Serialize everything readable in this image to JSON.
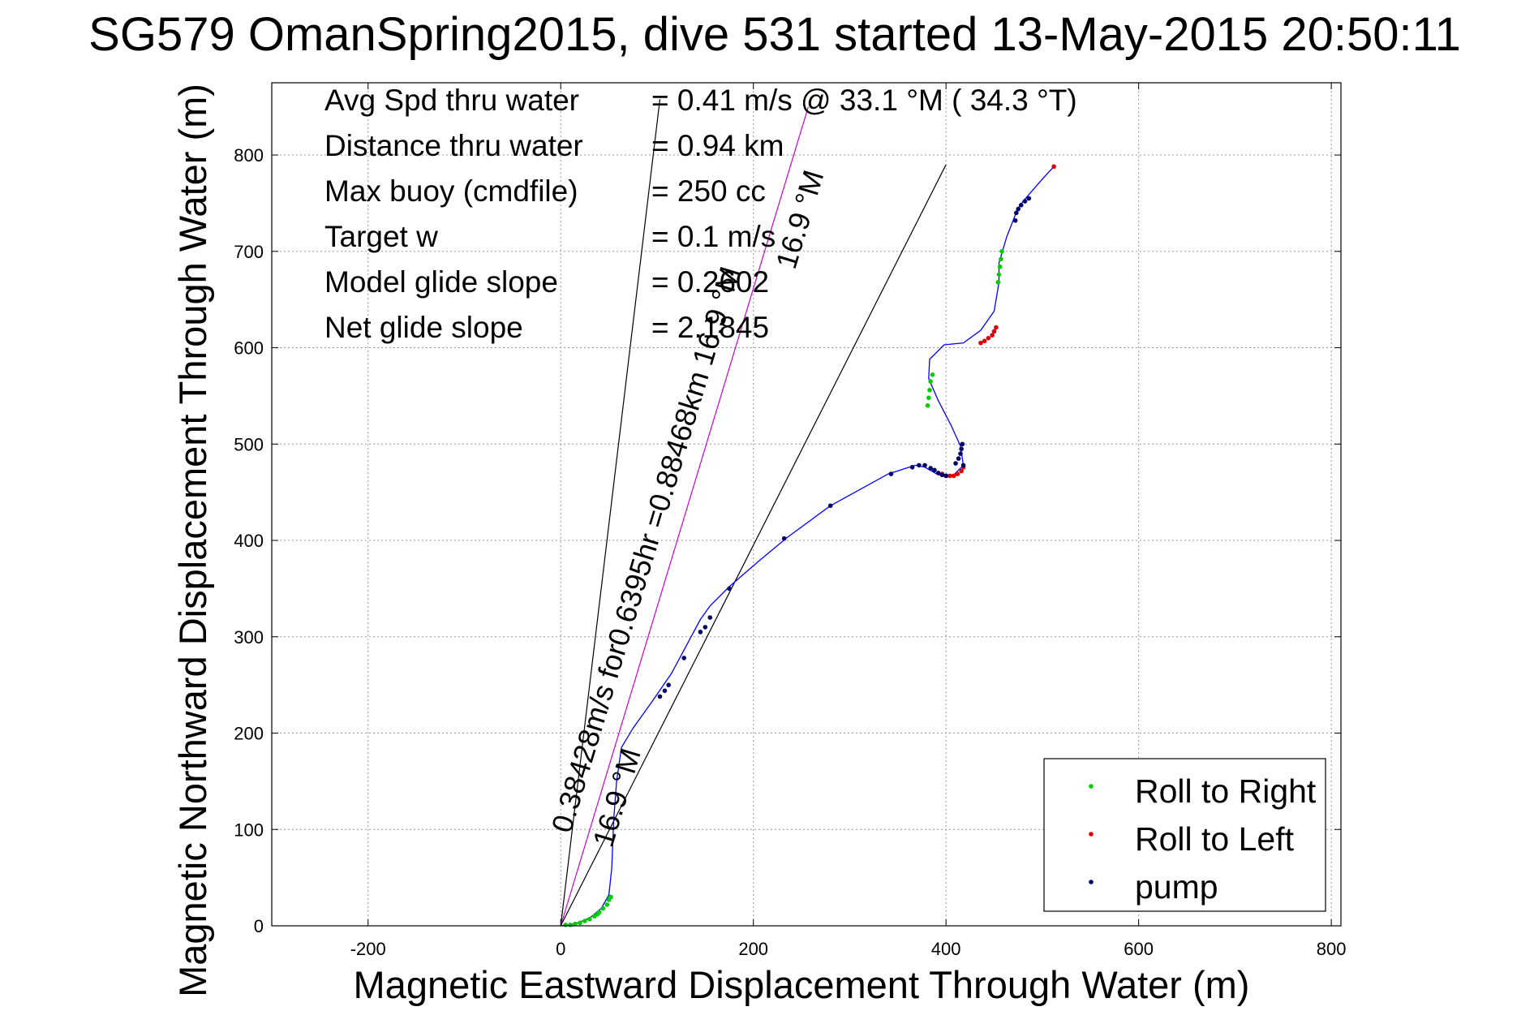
{
  "chart_data": {
    "type": "line",
    "title": "SG579 OmanSpring2015, dive 531 started 13-May-2015 20:50:11",
    "xlabel": "Magnetic Eastward Displacement Through Water (m)",
    "ylabel": "Magnetic Northward Displacement Through Water (m)",
    "xlim": [
      -300,
      810
    ],
    "ylim": [
      0,
      875
    ],
    "xticks": [
      -200,
      0,
      200,
      400,
      600,
      800
    ],
    "yticks": [
      0,
      100,
      200,
      300,
      400,
      500,
      600,
      700,
      800
    ],
    "grid": true,
    "legend_placement": "bottom-right",
    "annotations": [
      {
        "label": "Avg Spd thru water",
        "value": "=  0.41 m/s @  33.1 °M ( 34.3 °T)"
      },
      {
        "label": "Distance thru water",
        "value": "=  0.94 km"
      },
      {
        "label": "Max buoy (cmdfile)",
        "value": "= 250 cc"
      },
      {
        "label": "Target w",
        "value": "= 0.1 m/s"
      },
      {
        "label": "Model glide slope",
        "value": "= 0.2602"
      },
      {
        "label": "Net glide slope",
        "value": "= 2.1845"
      }
    ],
    "reference_lines": [
      {
        "name": "heading-33.1",
        "x": [
          0,
          103
        ],
        "y": [
          0,
          858
        ]
      },
      {
        "name": "heading-16.9",
        "x": [
          0,
          257
        ],
        "y": [
          0,
          850
        ]
      },
      {
        "name": "net-direction",
        "x": [
          0,
          400
        ],
        "y": [
          0,
          790
        ]
      }
    ],
    "rotated_labels": [
      {
        "text": "0.38428m/s for0.6395hr =0.88468km 16.9 °M",
        "angle_deg": 73.2,
        "x": 10,
        "y": 95
      },
      {
        "text": "16.9 °M",
        "angle_deg": 73.2,
        "x": 53,
        "y": 80
      },
      {
        "text": "16.9 °M",
        "angle_deg": 73.2,
        "x": 243,
        "y": 680
      }
    ],
    "track": {
      "name": "track",
      "color": "#0000ff",
      "x": [
        0,
        15,
        30,
        42,
        50,
        53,
        55,
        58,
        63,
        75,
        95,
        115,
        130,
        145,
        155,
        175,
        205,
        235,
        280,
        340,
        368,
        378,
        392,
        408,
        418,
        415,
        405,
        392,
        382,
        383,
        398,
        418,
        436,
        450,
        455,
        455,
        463,
        472,
        475,
        480,
        500,
        512
      ],
      "y": [
        0,
        2,
        8,
        18,
        32,
        60,
        110,
        150,
        185,
        205,
        233,
        262,
        290,
        318,
        332,
        352,
        378,
        403,
        436,
        469,
        478,
        476,
        468,
        468,
        478,
        498,
        520,
        545,
        568,
        588,
        603,
        605,
        618,
        638,
        668,
        688,
        715,
        738,
        745,
        752,
        775,
        788
      ]
    },
    "series": [
      {
        "name": "Roll to Right",
        "color": "#00cc00",
        "marker": "dot",
        "x": [
          5,
          10,
          15,
          20,
          25,
          30,
          35,
          40,
          44,
          48,
          50,
          52,
          38,
          381,
          382,
          383,
          384,
          386,
          454,
          455,
          456,
          457,
          458
        ],
        "y": [
          1,
          1,
          2,
          3,
          5,
          7,
          10,
          14,
          18,
          22,
          27,
          30,
          12,
          540,
          548,
          556,
          565,
          572,
          668,
          676,
          684,
          692,
          700
        ]
      },
      {
        "name": "Roll to Left",
        "color": "#dd0000",
        "marker": "dot",
        "x": [
          396,
          400,
          404,
          408,
          412,
          416,
          418,
          436,
          440,
          444,
          448,
          450,
          452,
          512
        ],
        "y": [
          469,
          467,
          467,
          467,
          469,
          472,
          476,
          605,
          607,
          610,
          613,
          617,
          621,
          788
        ]
      },
      {
        "name": "pump",
        "color": "#000066",
        "marker": "dot",
        "x": [
          103,
          108,
          112,
          128,
          145,
          150,
          155,
          175,
          232,
          280,
          343,
          365,
          372,
          378,
          384,
          388,
          392,
          396,
          400,
          410,
          413,
          415,
          416,
          417,
          418,
          472,
          473,
          475,
          478,
          482,
          486
        ],
        "y": [
          238,
          244,
          250,
          278,
          305,
          310,
          320,
          350,
          402,
          436,
          469,
          476,
          478,
          478,
          475,
          473,
          470,
          468,
          467,
          480,
          485,
          490,
          495,
          500,
          478,
          732,
          740,
          744,
          748,
          752,
          755
        ]
      }
    ]
  }
}
